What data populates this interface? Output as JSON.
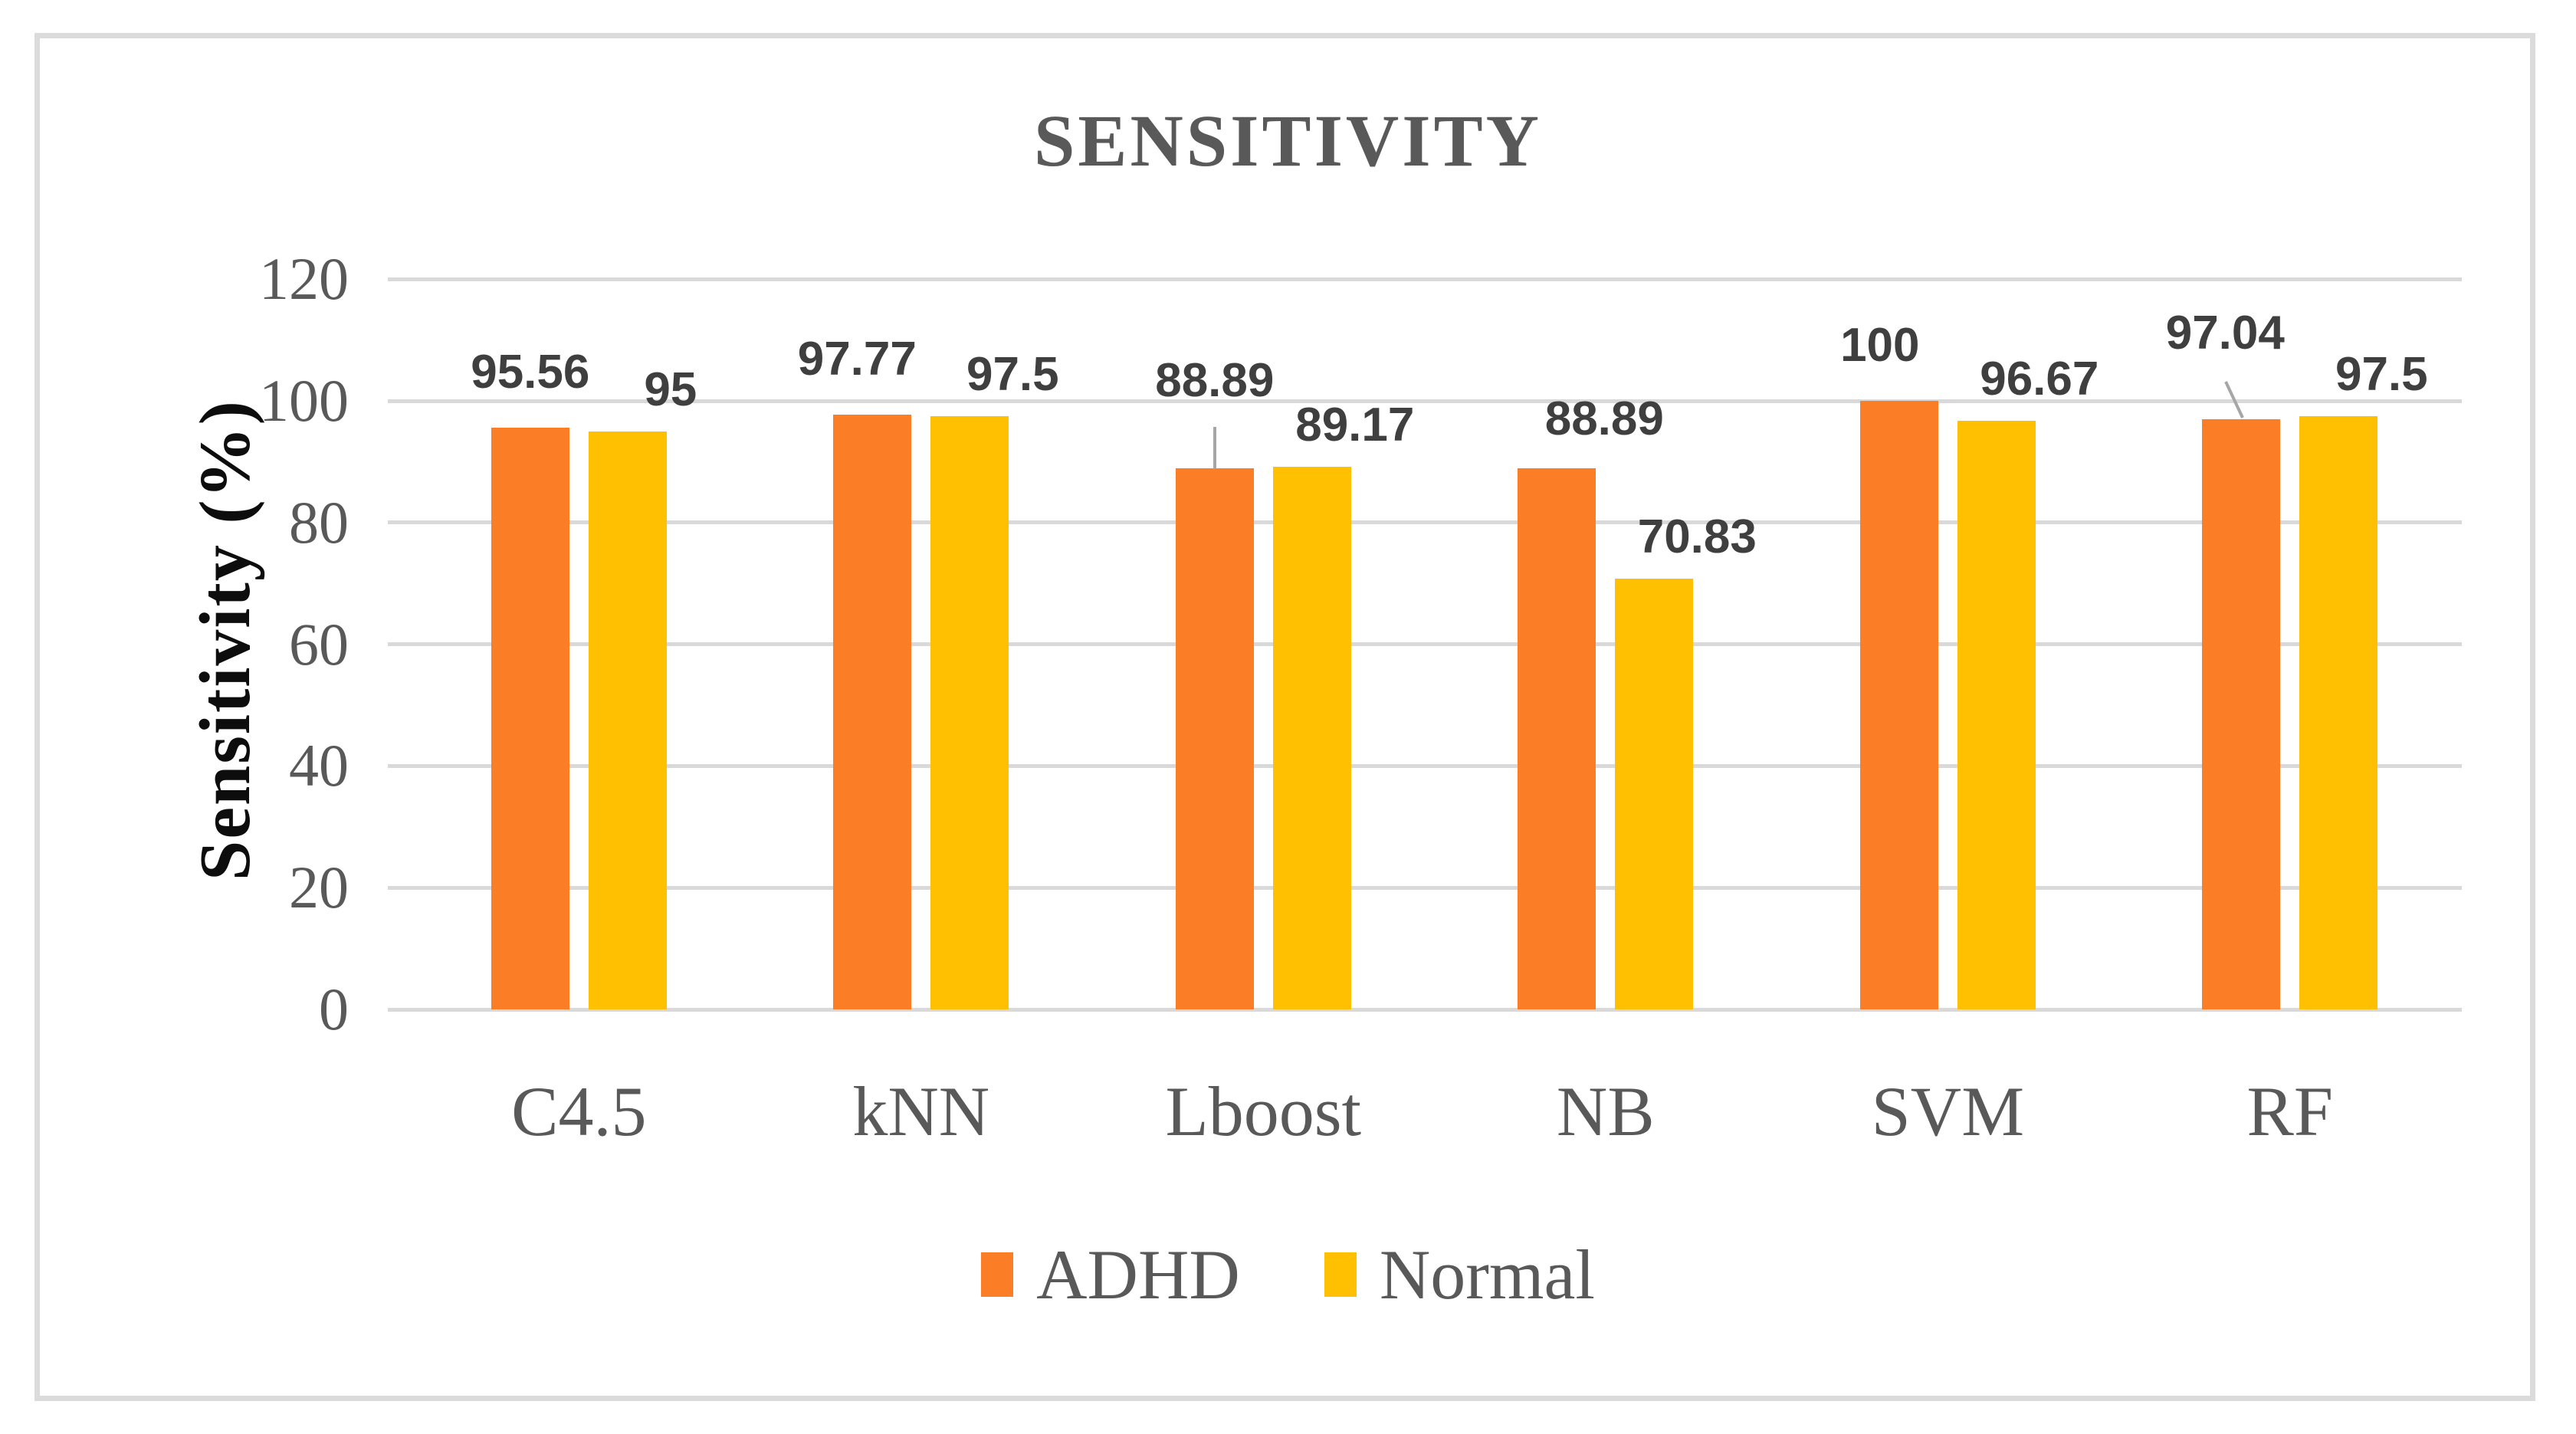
{
  "title": "SENSITIVITY",
  "y_axis_title": "Sensitivity (%)",
  "chart_data": {
    "type": "bar",
    "title": "SENSITIVITY",
    "categories": [
      "C4.5",
      "kNN",
      "Lboost",
      "NB",
      "SVM",
      "RF"
    ],
    "series": [
      {
        "name": "ADHD",
        "color": "#FB7D26",
        "values": [
          95.56,
          97.77,
          88.89,
          88.89,
          100,
          97.04
        ]
      },
      {
        "name": "Normal",
        "color": "#FEC000",
        "values": [
          95,
          97.5,
          89.17,
          70.83,
          96.67,
          97.5
        ]
      }
    ],
    "xlabel": "",
    "ylabel": "Sensitivity (%)",
    "ylim": [
      0,
      120
    ],
    "yticks": [
      0,
      20,
      40,
      60,
      80,
      100,
      120
    ],
    "grid": true,
    "legend_position": "bottom",
    "annotations": "data labels shown above each bar; leader lines on Lboost-ADHD and RF-ADHD labels"
  },
  "legend": {
    "items": [
      {
        "label": "ADHD",
        "color": "#FB7D26"
      },
      {
        "label": "Normal",
        "color": "#FEC000"
      }
    ]
  },
  "colors": {
    "adhd": "#FB7D26",
    "normal": "#FEC000",
    "gridline": "#D9D9D9",
    "frame_border": "#DBDBDB",
    "axis_text": "#595959",
    "data_label_text": "#3F3F3F",
    "y_title_text": "#0D0D0D",
    "leader_line": "#A6A6A6"
  }
}
